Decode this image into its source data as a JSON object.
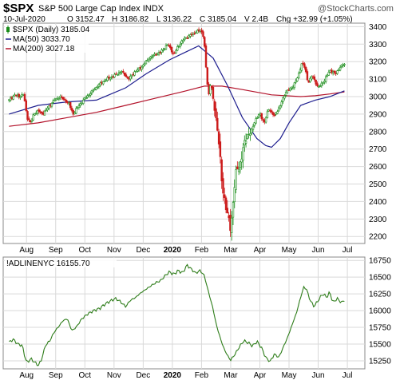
{
  "header": {
    "symbol": "$SPX",
    "name": "S&P 500 Large Cap Index",
    "exchange": "INDX",
    "watermark": "@StockCharts.com",
    "date": "10-Jul-2020",
    "open": "O 3152.47",
    "high": "H 3186.82",
    "low": "L 3136.22",
    "close": "C 3185.04",
    "volume": "V 2.4B",
    "change": "Chg +32.99 (+1.05%)"
  },
  "colors": {
    "up_candle": "#1a8c1a",
    "down_candle": "#cc1a1a",
    "ma50": "#1f1f8f",
    "ma200": "#b3122a",
    "indicator": "#2e7d1a",
    "grid": "#d9d9d9",
    "frame": "#888888"
  },
  "chart_data": [
    {
      "type": "candlestick",
      "legend": [
        {
          "label": "$SPX (Daily) 3185.04",
          "marker": "candle"
        },
        {
          "label": "MA(50) 3033.70",
          "color": "#1f1f8f"
        },
        {
          "label": "MA(200) 3027.18",
          "color": "#b3122a"
        }
      ],
      "ylim": [
        2160,
        3420
      ],
      "yticks": [
        2200,
        2300,
        2400,
        2500,
        2600,
        2700,
        2800,
        2900,
        3000,
        3100,
        3200,
        3300,
        3400
      ],
      "x_labels": [
        "Aug",
        "Sep",
        "Oct",
        "Nov",
        "Dec",
        "2020",
        "Feb",
        "Mar",
        "Apr",
        "May",
        "Jun",
        "Jul"
      ],
      "x_label_months": [
        0.6,
        1.6,
        2.6,
        3.6,
        4.6,
        5.6,
        6.6,
        7.6,
        8.6,
        9.6,
        10.6,
        11.6
      ],
      "x_range_months": [
        -0.2,
        12.2
      ],
      "close_path": [
        [
          0.0,
          2980
        ],
        [
          0.2,
          3010
        ],
        [
          0.35,
          3000
        ],
        [
          0.5,
          3015
        ],
        [
          0.62,
          2880
        ],
        [
          0.75,
          2850
        ],
        [
          0.85,
          2900
        ],
        [
          1.0,
          2920
        ],
        [
          1.15,
          2900
        ],
        [
          1.35,
          2940
        ],
        [
          1.55,
          2980
        ],
        [
          1.75,
          3000
        ],
        [
          1.9,
          2980
        ],
        [
          2.05,
          2960
        ],
        [
          2.2,
          2900
        ],
        [
          2.35,
          2940
        ],
        [
          2.6,
          2990
        ],
        [
          2.85,
          3030
        ],
        [
          3.1,
          3070
        ],
        [
          3.35,
          3100
        ],
        [
          3.6,
          3120
        ],
        [
          3.85,
          3145
        ],
        [
          4.1,
          3100
        ],
        [
          4.3,
          3140
        ],
        [
          4.55,
          3170
        ],
        [
          4.8,
          3220
        ],
        [
          5.0,
          3240
        ],
        [
          5.2,
          3255
        ],
        [
          5.45,
          3300
        ],
        [
          5.65,
          3240
        ],
        [
          5.8,
          3290
        ],
        [
          6.0,
          3330
        ],
        [
          6.2,
          3350
        ],
        [
          6.4,
          3370
        ],
        [
          6.58,
          3380
        ],
        [
          6.68,
          3340
        ],
        [
          6.76,
          3150
        ],
        [
          6.84,
          3000
        ],
        [
          6.92,
          3090
        ],
        [
          7.0,
          2980
        ],
        [
          7.1,
          2870
        ],
        [
          7.2,
          2740
        ],
        [
          7.3,
          2490
        ],
        [
          7.42,
          2390
        ],
        [
          7.52,
          2300
        ],
        [
          7.58,
          2240
        ],
        [
          7.64,
          2310
        ],
        [
          7.72,
          2480
        ],
        [
          7.8,
          2580
        ],
        [
          7.9,
          2600
        ],
        [
          8.0,
          2680
        ],
        [
          8.15,
          2780
        ],
        [
          8.3,
          2800
        ],
        [
          8.45,
          2870
        ],
        [
          8.6,
          2900
        ],
        [
          8.75,
          2850
        ],
        [
          8.9,
          2930
        ],
        [
          9.1,
          2890
        ],
        [
          9.3,
          2950
        ],
        [
          9.5,
          3030
        ],
        [
          9.7,
          3050
        ],
        [
          9.9,
          3110
        ],
        [
          10.05,
          3200
        ],
        [
          10.15,
          3160
        ],
        [
          10.25,
          3080
        ],
        [
          10.4,
          3120
        ],
        [
          10.6,
          3050
        ],
        [
          10.8,
          3090
        ],
        [
          11.0,
          3150
        ],
        [
          11.2,
          3130
        ],
        [
          11.35,
          3170
        ],
        [
          11.5,
          3185
        ]
      ],
      "ma50": [
        [
          0.0,
          2900
        ],
        [
          1.0,
          2950
        ],
        [
          2.0,
          2970
        ],
        [
          3.0,
          2980
        ],
        [
          4.0,
          3050
        ],
        [
          4.7,
          3130
        ],
        [
          5.5,
          3210
        ],
        [
          6.0,
          3250
        ],
        [
          6.5,
          3290
        ],
        [
          7.0,
          3220
        ],
        [
          7.5,
          3060
        ],
        [
          8.0,
          2880
        ],
        [
          8.5,
          2760
        ],
        [
          8.8,
          2720
        ],
        [
          9.0,
          2710
        ],
        [
          9.3,
          2760
        ],
        [
          9.6,
          2850
        ],
        [
          10.0,
          2950
        ],
        [
          10.5,
          2980
        ],
        [
          11.0,
          3000
        ],
        [
          11.5,
          3033
        ]
      ],
      "ma200": [
        [
          0.0,
          2830
        ],
        [
          1.0,
          2850
        ],
        [
          2.0,
          2880
        ],
        [
          3.0,
          2910
        ],
        [
          4.0,
          2950
        ],
        [
          5.0,
          2990
        ],
        [
          6.0,
          3030
        ],
        [
          6.7,
          3060
        ],
        [
          7.3,
          3060
        ],
        [
          8.0,
          3040
        ],
        [
          9.0,
          3010
        ],
        [
          10.0,
          3000
        ],
        [
          10.5,
          3005
        ],
        [
          11.0,
          3015
        ],
        [
          11.5,
          3027
        ]
      ]
    },
    {
      "type": "line",
      "legend": [
        {
          "label": "!ADLINENYC 16155.70"
        }
      ],
      "ylim": [
        15130,
        16800
      ],
      "yticks": [
        15250,
        15500,
        15750,
        16000,
        16250,
        16500,
        16750
      ],
      "x_labels": [
        "Aug",
        "Sep",
        "Oct",
        "Nov",
        "Dec",
        "2020",
        "Feb",
        "Mar",
        "Apr",
        "May",
        "Jun",
        "Jul"
      ],
      "x_label_months": [
        0.6,
        1.6,
        2.6,
        3.6,
        4.6,
        5.6,
        6.6,
        7.6,
        8.6,
        9.6,
        10.6,
        11.6
      ],
      "series": [
        {
          "values": [
            [
              0.0,
              15530
            ],
            [
              0.15,
              15570
            ],
            [
              0.3,
              15500
            ],
            [
              0.45,
              15480
            ],
            [
              0.6,
              15220
            ],
            [
              0.75,
              15280
            ],
            [
              0.9,
              15220
            ],
            [
              1.0,
              15180
            ],
            [
              1.1,
              15250
            ],
            [
              1.25,
              15480
            ],
            [
              1.4,
              15550
            ],
            [
              1.55,
              15680
            ],
            [
              1.7,
              15760
            ],
            [
              1.85,
              15850
            ],
            [
              2.0,
              15880
            ],
            [
              2.15,
              15700
            ],
            [
              2.3,
              15750
            ],
            [
              2.5,
              15880
            ],
            [
              2.7,
              15950
            ],
            [
              2.9,
              16000
            ],
            [
              3.1,
              16030
            ],
            [
              3.3,
              16100
            ],
            [
              3.5,
              16150
            ],
            [
              3.65,
              16180
            ],
            [
              3.8,
              16140
            ],
            [
              4.0,
              16060
            ],
            [
              4.15,
              16150
            ],
            [
              4.35,
              16200
            ],
            [
              4.5,
              16260
            ],
            [
              4.7,
              16320
            ],
            [
              4.9,
              16380
            ],
            [
              5.05,
              16420
            ],
            [
              5.2,
              16450
            ],
            [
              5.35,
              16520
            ],
            [
              5.5,
              16580
            ],
            [
              5.65,
              16540
            ],
            [
              5.8,
              16600
            ],
            [
              5.95,
              16560
            ],
            [
              6.1,
              16680
            ],
            [
              6.25,
              16620
            ],
            [
              6.4,
              16560
            ],
            [
              6.55,
              16600
            ],
            [
              6.7,
              16520
            ],
            [
              6.8,
              16340
            ],
            [
              6.9,
              16180
            ],
            [
              7.0,
              16020
            ],
            [
              7.1,
              15800
            ],
            [
              7.2,
              15650
            ],
            [
              7.35,
              15450
            ],
            [
              7.5,
              15320
            ],
            [
              7.6,
              15260
            ],
            [
              7.75,
              15350
            ],
            [
              7.9,
              15460
            ],
            [
              8.05,
              15550
            ],
            [
              8.2,
              15520
            ],
            [
              8.35,
              15470
            ],
            [
              8.5,
              15540
            ],
            [
              8.65,
              15450
            ],
            [
              8.8,
              15300
            ],
            [
              8.95,
              15240
            ],
            [
              9.1,
              15350
            ],
            [
              9.25,
              15300
            ],
            [
              9.4,
              15450
            ],
            [
              9.55,
              15600
            ],
            [
              9.7,
              15780
            ],
            [
              9.85,
              15960
            ],
            [
              10.0,
              16200
            ],
            [
              10.1,
              16350
            ],
            [
              10.2,
              16320
            ],
            [
              10.3,
              16180
            ],
            [
              10.45,
              16060
            ],
            [
              10.6,
              16150
            ],
            [
              10.75,
              16250
            ],
            [
              10.9,
              16200
            ],
            [
              11.0,
              16280
            ],
            [
              11.1,
              16120
            ],
            [
              11.25,
              16180
            ],
            [
              11.4,
              16120
            ],
            [
              11.5,
              16156
            ]
          ]
        }
      ]
    }
  ]
}
